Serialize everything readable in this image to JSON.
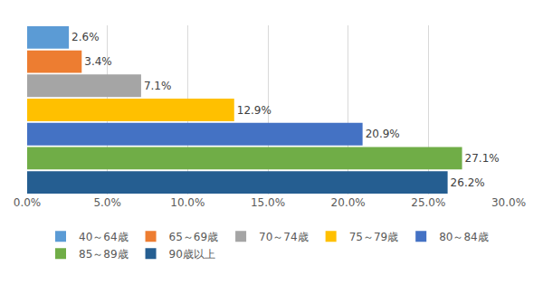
{
  "chart_data": {
    "type": "bar",
    "orientation": "horizontal",
    "categories": [
      "40～64歳",
      "65～69歳",
      "70～74歳",
      "75～79歳",
      "80～84歳",
      "85～89歳",
      "90歳以上"
    ],
    "values": [
      2.6,
      3.4,
      7.1,
      12.9,
      20.9,
      27.1,
      26.2
    ],
    "value_labels": [
      "2.6%",
      "3.4%",
      "7.1%",
      "12.9%",
      "20.9%",
      "27.1%",
      "26.2%"
    ],
    "colors": [
      "#5B9BD5",
      "#ED7D31",
      "#A5A5A5",
      "#FFC000",
      "#4472C4",
      "#70AD47",
      "#255E91"
    ],
    "xlim": [
      0,
      30
    ],
    "xticks": [
      {
        "value": 0,
        "label": "0.0%"
      },
      {
        "value": 5,
        "label": "5.0%"
      },
      {
        "value": 10,
        "label": "10.0%"
      },
      {
        "value": 15,
        "label": "15.0%"
      },
      {
        "value": 20,
        "label": "20.0%"
      },
      {
        "value": 25,
        "label": "25.0%"
      },
      {
        "value": 30,
        "label": "30.0%"
      }
    ],
    "grid": true,
    "data_labels": true,
    "tick_labels": "x",
    "legend": "bottom"
  }
}
